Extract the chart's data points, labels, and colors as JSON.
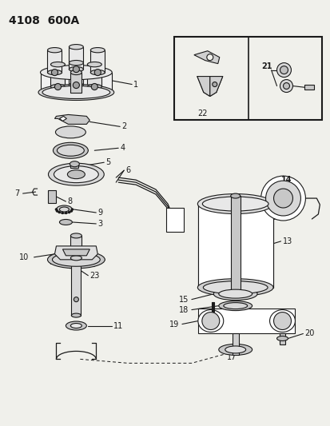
{
  "title": "4108  600A",
  "bg_color": "#f0f0eb",
  "line_color": "#1a1a1a",
  "fig_width": 4.14,
  "fig_height": 5.33,
  "dpi": 100
}
